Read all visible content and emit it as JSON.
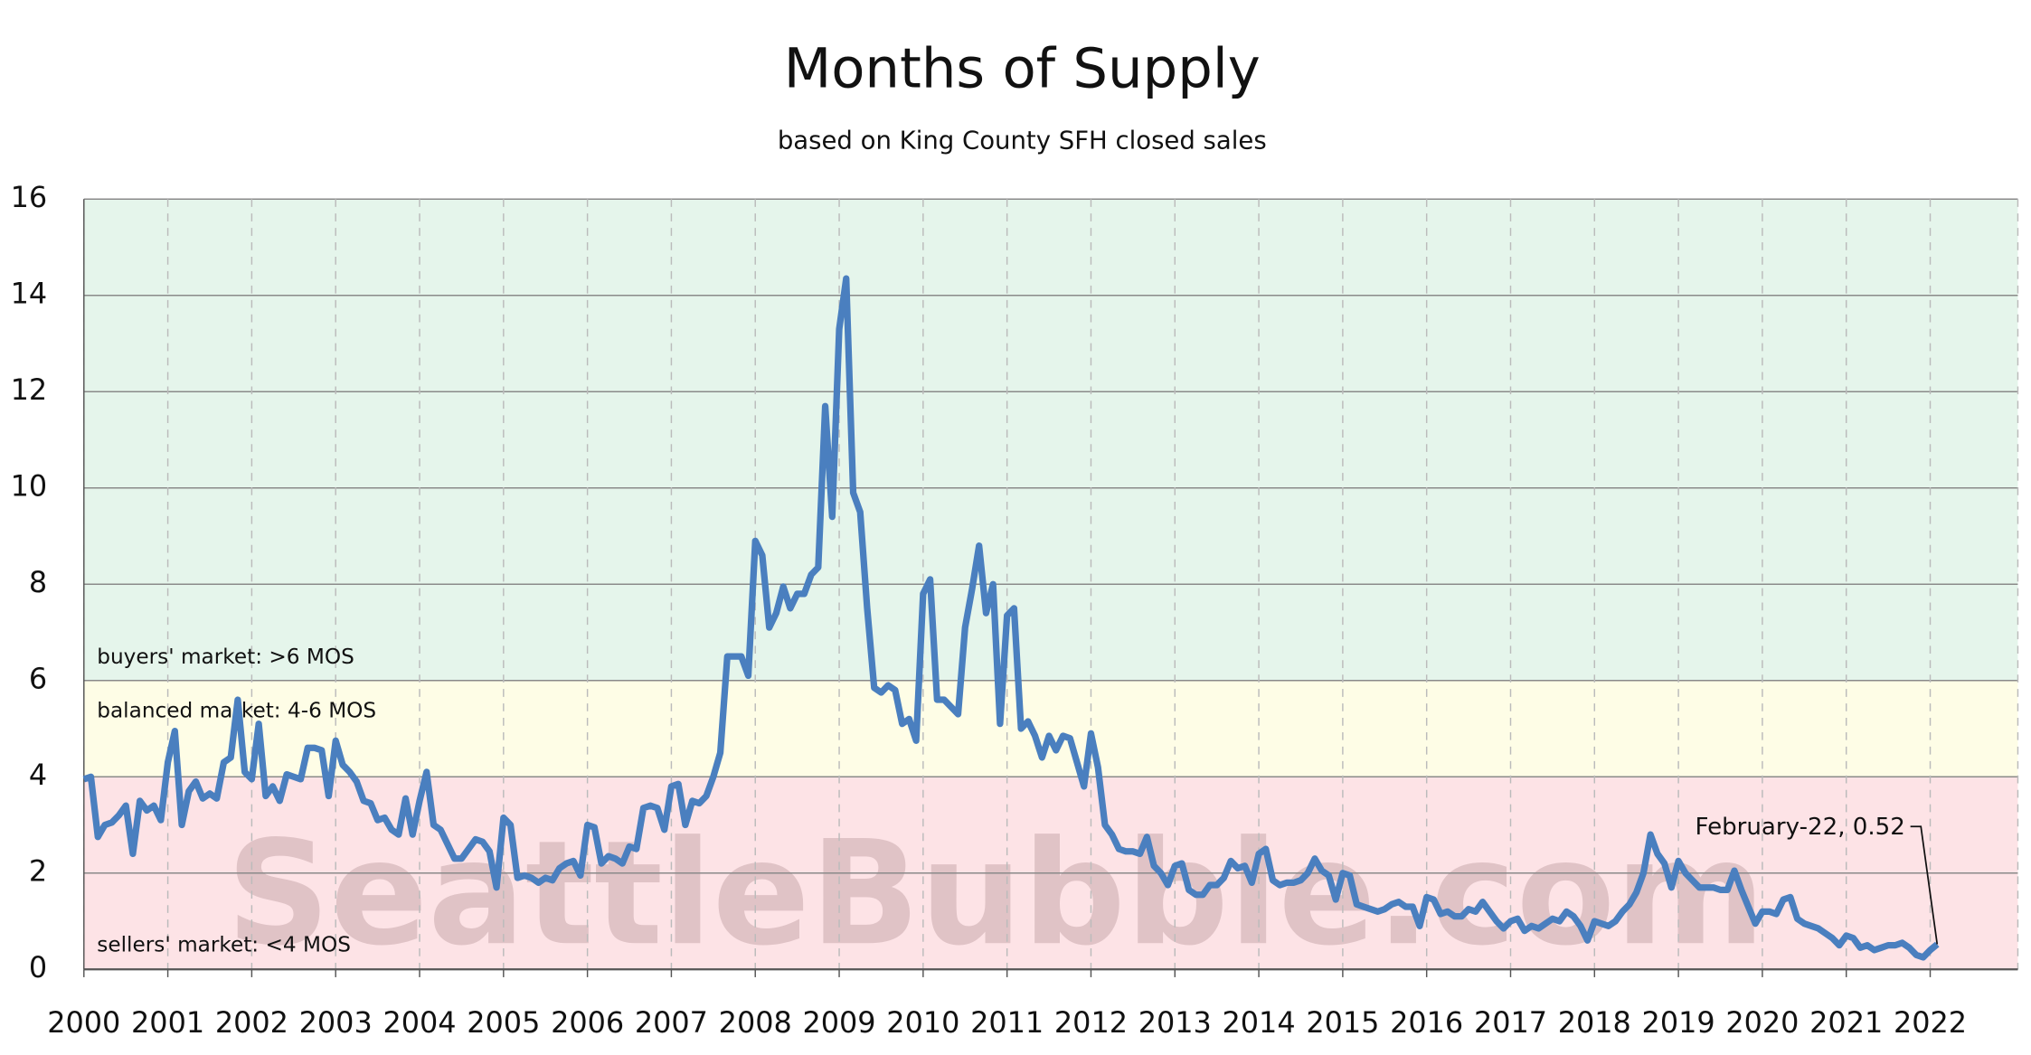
{
  "chart_data": {
    "type": "line",
    "title": "Months of Supply",
    "subtitle": "based on King County SFH closed sales",
    "watermark": "SeattleBubble.com",
    "color": "#4a7fbf",
    "ylim": [
      0,
      16
    ],
    "yticks": [
      0,
      2,
      4,
      6,
      8,
      10,
      12,
      14,
      16
    ],
    "grid": true,
    "bands": [
      {
        "label": "buyers' market: >6 MOS",
        "from": 6,
        "to": 16,
        "color": "#e5f5eb"
      },
      {
        "label": "balanced market: 4-6 MOS",
        "from": 4,
        "to": 6,
        "color": "#fefde6"
      },
      {
        "label": "sellers' market: <4 MOS",
        "from": 0,
        "to": 4,
        "color": "#fde3e6"
      }
    ],
    "annotation": {
      "text": "February-22, 0.52"
    },
    "categories": [
      "2000",
      null,
      null,
      null,
      null,
      null,
      null,
      null,
      null,
      null,
      null,
      null,
      "2001",
      null,
      null,
      null,
      null,
      null,
      null,
      null,
      null,
      null,
      null,
      null,
      "2002",
      null,
      null,
      null,
      null,
      null,
      null,
      null,
      null,
      null,
      null,
      null,
      "2003",
      null,
      null,
      null,
      null,
      null,
      null,
      null,
      null,
      null,
      null,
      null,
      "2004",
      null,
      null,
      null,
      null,
      null,
      null,
      null,
      null,
      null,
      null,
      null,
      "2005",
      null,
      null,
      null,
      null,
      null,
      null,
      null,
      null,
      null,
      null,
      null,
      "2006",
      null,
      null,
      null,
      null,
      null,
      null,
      null,
      null,
      null,
      null,
      null,
      "2007",
      null,
      null,
      null,
      null,
      null,
      null,
      null,
      null,
      null,
      null,
      null,
      "2008",
      null,
      null,
      null,
      null,
      null,
      null,
      null,
      null,
      null,
      null,
      null,
      "2009",
      null,
      null,
      null,
      null,
      null,
      null,
      null,
      null,
      null,
      null,
      null,
      "2010",
      null,
      null,
      null,
      null,
      null,
      null,
      null,
      null,
      null,
      null,
      null,
      "2011",
      null,
      null,
      null,
      null,
      null,
      null,
      null,
      null,
      null,
      null,
      null,
      "2012",
      null,
      null,
      null,
      null,
      null,
      null,
      null,
      null,
      null,
      null,
      null,
      "2013",
      null,
      null,
      null,
      null,
      null,
      null,
      null,
      null,
      null,
      null,
      null,
      "2014",
      null,
      null,
      null,
      null,
      null,
      null,
      null,
      null,
      null,
      null,
      null,
      "2015",
      null,
      null,
      null,
      null,
      null,
      null,
      null,
      null,
      null,
      null,
      null,
      "2016",
      null,
      null,
      null,
      null,
      null,
      null,
      null,
      null,
      null,
      null,
      null,
      "2017",
      null,
      null,
      null,
      null,
      null,
      null,
      null,
      null,
      null,
      null,
      null,
      "2018",
      null,
      null,
      null,
      null,
      null,
      null,
      null,
      null,
      null,
      null,
      null,
      "2019",
      null,
      null,
      null,
      null,
      null,
      null,
      null,
      null,
      null,
      null,
      null,
      "2020",
      null,
      null,
      null,
      null,
      null,
      null,
      null,
      null,
      null,
      null,
      null,
      "2021",
      null,
      null,
      null,
      null,
      null,
      null,
      null,
      null,
      null,
      null,
      null,
      "2022",
      null
    ],
    "values": [
      3.95,
      4.0,
      2.75,
      3.0,
      3.05,
      3.2,
      3.4,
      2.4,
      3.5,
      3.3,
      3.4,
      3.1,
      4.3,
      4.95,
      3.0,
      3.7,
      3.9,
      3.55,
      3.65,
      3.55,
      4.3,
      4.4,
      5.6,
      4.1,
      3.95,
      5.1,
      3.6,
      3.8,
      3.5,
      4.05,
      4.0,
      3.95,
      4.6,
      4.6,
      4.55,
      3.6,
      4.75,
      4.25,
      4.1,
      3.9,
      3.5,
      3.45,
      3.1,
      3.15,
      2.9,
      2.8,
      3.55,
      2.8,
      3.5,
      4.1,
      3.0,
      2.9,
      2.6,
      2.3,
      2.3,
      2.5,
      2.7,
      2.65,
      2.45,
      1.7,
      3.15,
      3.0,
      1.9,
      1.95,
      1.9,
      1.8,
      1.9,
      1.85,
      2.1,
      2.2,
      2.25,
      1.95,
      3.0,
      2.95,
      2.2,
      2.35,
      2.3,
      2.2,
      2.55,
      2.5,
      3.35,
      3.4,
      3.35,
      2.9,
      3.8,
      3.85,
      3.0,
      3.5,
      3.45,
      3.6,
      4.0,
      4.5,
      6.5,
      6.5,
      6.5,
      6.1,
      8.9,
      8.6,
      7.1,
      7.4,
      7.95,
      7.5,
      7.8,
      7.8,
      8.2,
      8.35,
      11.7,
      9.4,
      13.3,
      14.35,
      9.9,
      9.5,
      7.5,
      5.85,
      5.75,
      5.9,
      5.8,
      5.1,
      5.2,
      4.75,
      7.8,
      8.1,
      5.6,
      5.6,
      5.45,
      5.3,
      7.1,
      7.9,
      8.8,
      7.4,
      8.0,
      5.1,
      7.35,
      7.5,
      5.0,
      5.15,
      4.85,
      4.4,
      4.85,
      4.55,
      4.85,
      4.8,
      4.3,
      3.8,
      4.9,
      4.2,
      3.0,
      2.8,
      2.5,
      2.45,
      2.45,
      2.4,
      2.75,
      2.15,
      2.0,
      1.75,
      2.15,
      2.2,
      1.65,
      1.55,
      1.55,
      1.75,
      1.75,
      1.9,
      2.25,
      2.1,
      2.15,
      1.8,
      2.4,
      2.5,
      1.85,
      1.75,
      1.8,
      1.8,
      1.85,
      2.0,
      2.3,
      2.05,
      1.95,
      1.45,
      2.0,
      1.95,
      1.35,
      1.3,
      1.25,
      1.2,
      1.25,
      1.35,
      1.4,
      1.3,
      1.3,
      0.9,
      1.5,
      1.45,
      1.15,
      1.2,
      1.1,
      1.1,
      1.25,
      1.2,
      1.4,
      1.2,
      1.0,
      0.85,
      1.0,
      1.05,
      0.8,
      0.9,
      0.85,
      0.95,
      1.05,
      1.0,
      1.2,
      1.1,
      0.9,
      0.6,
      1.0,
      0.95,
      0.9,
      1.0,
      1.2,
      1.35,
      1.6,
      2.0,
      2.8,
      2.4,
      2.2,
      1.7,
      2.25,
      2.0,
      1.85,
      1.7,
      1.7,
      1.7,
      1.65,
      1.65,
      2.05,
      1.65,
      1.3,
      0.95,
      1.2,
      1.2,
      1.15,
      1.45,
      1.5,
      1.05,
      0.95,
      0.9,
      0.85,
      0.75,
      0.65,
      0.5,
      0.7,
      0.65,
      0.45,
      0.5,
      0.4,
      0.45,
      0.5,
      0.5,
      0.55,
      0.45,
      0.3,
      0.25,
      0.4,
      0.52
    ]
  }
}
